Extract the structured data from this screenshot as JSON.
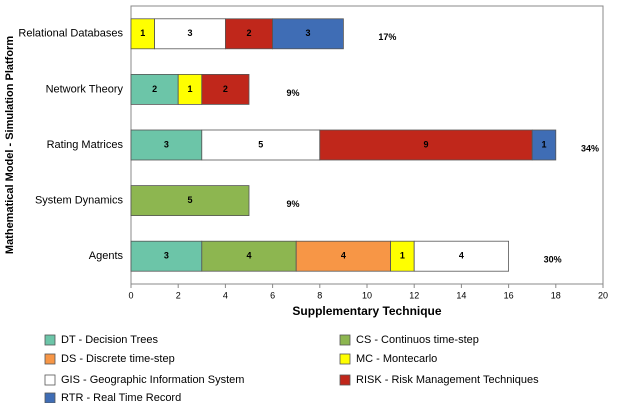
{
  "chart_data": {
    "type": "stacked-bar-horizontal",
    "x_label": "Supplementary Technique",
    "y_label": "Mathematical Model - Simulation Platform",
    "categories": [
      "Relational Databases",
      "Network Theory",
      "Rating Matrices",
      "System Dynamics",
      "Agents"
    ],
    "series": [
      {
        "name": "DT - Decision Trees",
        "color": "#6cc5a8",
        "values": [
          null,
          2,
          3,
          null,
          3
        ]
      },
      {
        "name": "CS - Continuos time-step",
        "color": "#8db650",
        "values": [
          null,
          null,
          null,
          5,
          4
        ]
      },
      {
        "name": "DS - Discrete time-step",
        "color": "#f79646",
        "values": [
          null,
          null,
          null,
          null,
          4
        ]
      },
      {
        "name": "MC - Montecarlo",
        "color": "#ffff00",
        "values": [
          1,
          1,
          null,
          null,
          1
        ]
      },
      {
        "name": "GIS - Geographic Information System",
        "color": "#ffffff",
        "values": [
          3,
          null,
          5,
          null,
          4
        ]
      },
      {
        "name": "RISK - Risk Management Techniques",
        "color": "#c0271b",
        "values": [
          2,
          2,
          9,
          null,
          null
        ]
      },
      {
        "name": "RTR - Real Time Record",
        "color": "#3f6db5",
        "values": [
          3,
          null,
          1,
          null,
          null
        ]
      }
    ],
    "share_labels": [
      "17%",
      "9%",
      "34%",
      "9%",
      "30%"
    ],
    "xlim": [
      0,
      20
    ],
    "xticks": [
      0,
      2,
      4,
      6,
      8,
      10,
      12,
      14,
      16,
      18,
      20
    ]
  }
}
